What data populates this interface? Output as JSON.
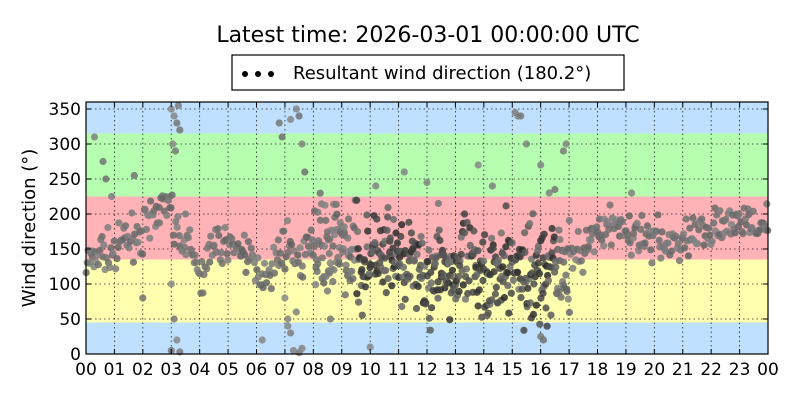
{
  "chart_data": {
    "type": "scatter",
    "title": "Latest time: 2026-03-01 00:00:00 UTC",
    "ylabel": "Wind direction (°)",
    "xlabel": "",
    "xlim": [
      0,
      24
    ],
    "ylim": [
      0,
      360
    ],
    "x_tick_labels": [
      "00",
      "01",
      "02",
      "03",
      "04",
      "05",
      "06",
      "07",
      "08",
      "09",
      "10",
      "11",
      "12",
      "13",
      "14",
      "15",
      "16",
      "17",
      "18",
      "19",
      "20",
      "21",
      "22",
      "23",
      "00"
    ],
    "y_ticks": [
      0,
      50,
      100,
      150,
      200,
      250,
      300,
      350
    ],
    "grid": true,
    "legend": {
      "placement": "top-center",
      "label": "Resultant wind direction (180.2°)"
    },
    "bands": [
      {
        "from": 0,
        "to": 45,
        "color": "#bfe0ff"
      },
      {
        "from": 45,
        "to": 135,
        "color": "#ffffb0"
      },
      {
        "from": 135,
        "to": 225,
        "color": "#ffb3b6"
      },
      {
        "from": 225,
        "to": 315,
        "color": "#b7ffb0"
      },
      {
        "from": 315,
        "to": 360,
        "color": "#bfe0ff"
      }
    ],
    "trend": [
      [
        0.0,
        125
      ],
      [
        0.5,
        150
      ],
      [
        1.0,
        140
      ],
      [
        1.5,
        165
      ],
      [
        2.0,
        175
      ],
      [
        2.5,
        200
      ],
      [
        2.9,
        210
      ],
      [
        3.1,
        180
      ],
      [
        3.5,
        160
      ],
      [
        4.0,
        115
      ],
      [
        4.5,
        145
      ],
      [
        5.0,
        160
      ],
      [
        5.5,
        150
      ],
      [
        6.0,
        120
      ],
      [
        6.5,
        120
      ],
      [
        7.0,
        160
      ],
      [
        7.5,
        130
      ],
      [
        8.0,
        150
      ],
      [
        8.5,
        160
      ],
      [
        9.0,
        150
      ],
      [
        9.5,
        145
      ],
      [
        10.0,
        130
      ],
      [
        10.5,
        130
      ],
      [
        11.0,
        125
      ],
      [
        11.5,
        130
      ],
      [
        12.0,
        120
      ],
      [
        12.5,
        115
      ],
      [
        13.0,
        118
      ],
      [
        13.5,
        118
      ],
      [
        14.0,
        120
      ],
      [
        14.5,
        120
      ],
      [
        15.0,
        122
      ],
      [
        15.5,
        118
      ],
      [
        16.0,
        115
      ],
      [
        16.5,
        125
      ],
      [
        17.0,
        135
      ],
      [
        17.5,
        150
      ],
      [
        18.0,
        165
      ],
      [
        18.5,
        180
      ],
      [
        19.0,
        175
      ],
      [
        19.5,
        165
      ],
      [
        20.0,
        160
      ],
      [
        20.5,
        158
      ],
      [
        21.0,
        160
      ],
      [
        21.5,
        170
      ],
      [
        22.0,
        180
      ],
      [
        22.5,
        178
      ],
      [
        23.0,
        190
      ],
      [
        23.5,
        195
      ],
      [
        24.0,
        182
      ]
    ],
    "outliers": [
      [
        0.3,
        310
      ],
      [
        0.6,
        275
      ],
      [
        0.7,
        250
      ],
      [
        0.9,
        225
      ],
      [
        1.7,
        255
      ],
      [
        3.0,
        350
      ],
      [
        3.1,
        340
      ],
      [
        3.2,
        330
      ],
      [
        3.3,
        320
      ],
      [
        3.25,
        355
      ],
      [
        3.05,
        300
      ],
      [
        3.15,
        290
      ],
      [
        3.0,
        100
      ],
      [
        3.1,
        50
      ],
      [
        3.2,
        20
      ],
      [
        3.0,
        5
      ],
      [
        3.3,
        3
      ],
      [
        6.8,
        330
      ],
      [
        6.9,
        310
      ],
      [
        7.2,
        335
      ],
      [
        7.4,
        350
      ],
      [
        7.5,
        340
      ],
      [
        7.6,
        300
      ],
      [
        7.7,
        260
      ],
      [
        7.0,
        80
      ],
      [
        7.1,
        50
      ],
      [
        7.2,
        30
      ],
      [
        7.3,
        5
      ],
      [
        7.5,
        2
      ],
      [
        7.6,
        8
      ],
      [
        7.1,
        40
      ],
      [
        7.4,
        60
      ],
      [
        8.5,
        90
      ],
      [
        8.6,
        50
      ],
      [
        10.0,
        10
      ],
      [
        10.2,
        240
      ],
      [
        11.2,
        260
      ],
      [
        12.0,
        245
      ],
      [
        12.4,
        215
      ],
      [
        13.8,
        270
      ],
      [
        14.3,
        240
      ],
      [
        15.1,
        345
      ],
      [
        15.2,
        340
      ],
      [
        15.3,
        340
      ],
      [
        15.5,
        300
      ],
      [
        16.0,
        270
      ],
      [
        16.3,
        230
      ],
      [
        16.5,
        235
      ],
      [
        16.8,
        290
      ],
      [
        16.9,
        300
      ],
      [
        16.0,
        25
      ],
      [
        16.1,
        20
      ],
      [
        6.2,
        20
      ],
      [
        2.0,
        80
      ],
      [
        3.5,
        200
      ],
      [
        19.2,
        230
      ]
    ],
    "seed": 7
  }
}
